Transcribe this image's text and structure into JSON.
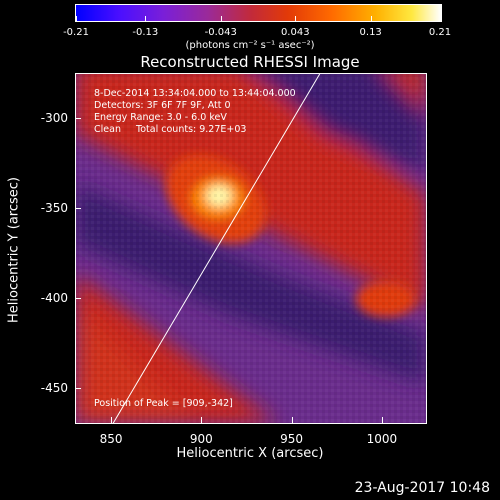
{
  "colorbar": {
    "ticks": [
      "-0.21",
      "-0.13",
      "-0.043",
      "0.043",
      "0.13",
      "0.21"
    ],
    "tick_values": [
      -0.21,
      -0.13,
      -0.043,
      0.043,
      0.13,
      0.21
    ],
    "range": [
      -0.21,
      0.21
    ],
    "units": "(photons cm⁻² s⁻¹ asec⁻²)",
    "colors": [
      "#0000ff",
      "#7a1fd8",
      "#c22a3a",
      "#ff6a00",
      "#ffe840",
      "#ffffff"
    ]
  },
  "chart_data": {
    "type": "heatmap",
    "title": "Reconstructed RHESSI Image",
    "xlabel": "Heliocentric X (arcsec)",
    "ylabel": "Heliocentric Y (arcsec)",
    "xlim": [
      830,
      1025
    ],
    "ylim": [
      -470,
      -275
    ],
    "xticks": [
      "850",
      "900",
      "950",
      "1000"
    ],
    "xtick_values": [
      850,
      900,
      950,
      1000
    ],
    "yticks": [
      "-300",
      "-350",
      "-400",
      "-450"
    ],
    "ytick_values": [
      -300,
      -350,
      -400,
      -450
    ],
    "peak": [
      909,
      -342
    ],
    "limb_line": {
      "x": [
        850,
        965
      ],
      "y": [
        -470,
        -275
      ]
    },
    "annotations": {
      "time": "8-Dec-2014 13:34:04.000 to 13:44:04.000",
      "detectors": "Detectors: 3F 6F 7F 9F, Att 0",
      "energy": "Energy Range: 3.0 - 6.0 keV",
      "clean": "Clean     Total counts: 9.27E+03",
      "peak_label": "Position of Peak = [909,-342]"
    }
  },
  "footer": {
    "date": "23-Aug-2017 10:48"
  }
}
